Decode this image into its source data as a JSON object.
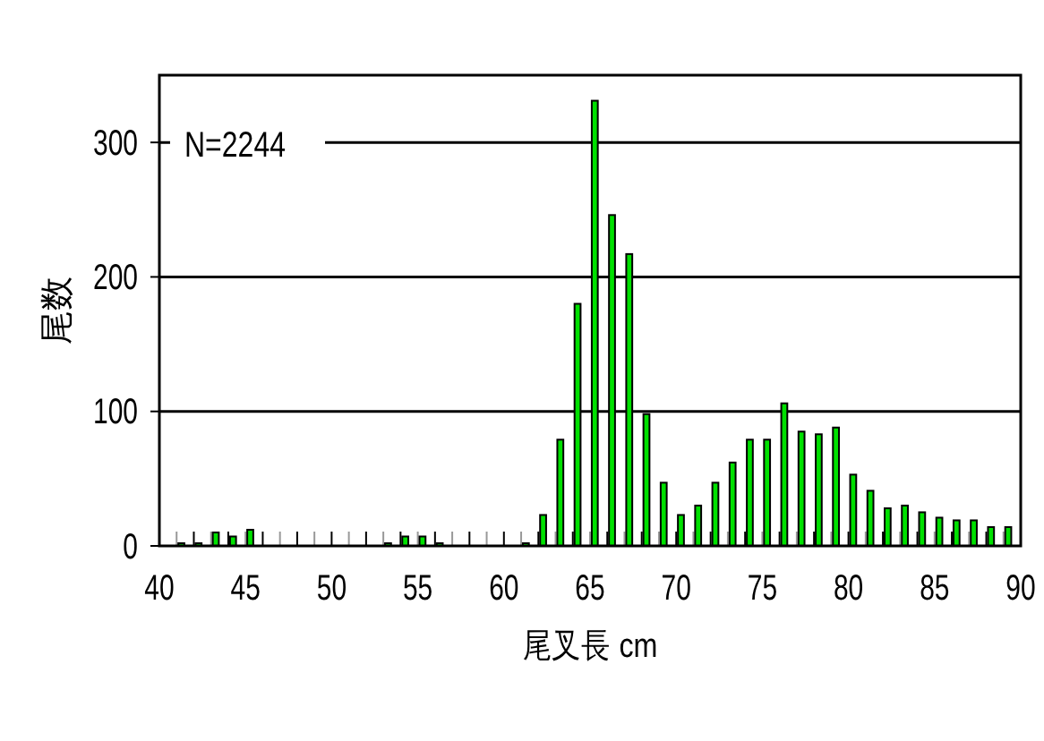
{
  "chart_data": {
    "type": "bar",
    "xlabel": "尾叉長 cm",
    "ylabel": "尾数",
    "annotations": [
      "N=2244"
    ],
    "x": [
      40,
      41,
      42,
      43,
      44,
      45,
      46,
      47,
      48,
      49,
      50,
      51,
      52,
      53,
      54,
      55,
      56,
      57,
      58,
      59,
      60,
      61,
      62,
      63,
      64,
      65,
      66,
      67,
      68,
      69,
      70,
      71,
      72,
      73,
      74,
      75,
      76,
      77,
      78,
      79,
      80,
      81,
      82,
      83,
      84,
      85,
      86,
      87,
      88,
      89
    ],
    "values": [
      0,
      2,
      2,
      10,
      7,
      12,
      0,
      0,
      0,
      0,
      0,
      0,
      0,
      2,
      7,
      7,
      2,
      0,
      0,
      0,
      0,
      2,
      23,
      79,
      180,
      331,
      246,
      217,
      98,
      47,
      23,
      30,
      47,
      62,
      79,
      79,
      106,
      85,
      83,
      88,
      53,
      41,
      28,
      30,
      25,
      21,
      19,
      19,
      14,
      14
    ],
    "color": "#00e000",
    "xlim": [
      40,
      90
    ],
    "ylim": [
      0,
      350
    ],
    "xticks": [
      40,
      45,
      50,
      55,
      60,
      65,
      70,
      75,
      80,
      85,
      90
    ],
    "yticks": [
      0,
      100,
      200,
      300
    ],
    "grid": "y"
  }
}
